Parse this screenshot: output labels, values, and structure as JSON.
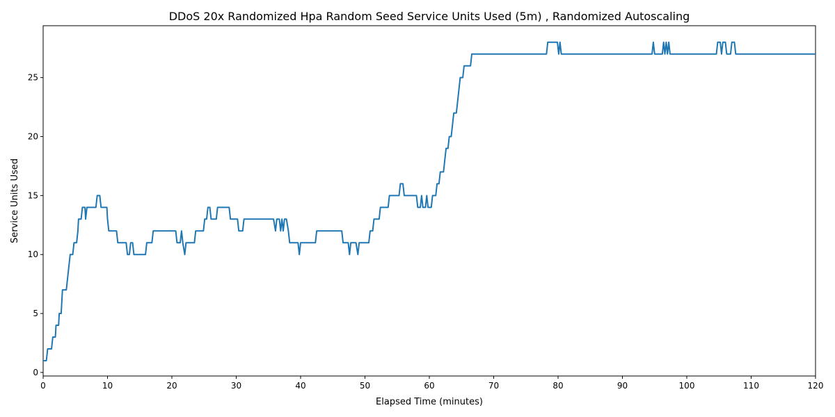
{
  "chart_data": {
    "type": "line",
    "title": "DDoS 20x Randomized Hpa Random Seed Service Units Used (5m) , Randomized Autoscaling",
    "xlabel": "Elapsed Time (minutes)",
    "ylabel": "Service Units Used",
    "xlim": [
      0,
      120
    ],
    "ylim": [
      -0.3,
      29.4
    ],
    "xticks": [
      0,
      10,
      20,
      30,
      40,
      50,
      60,
      70,
      80,
      90,
      100,
      110,
      120
    ],
    "yticks": [
      0,
      5,
      10,
      15,
      20,
      25
    ],
    "x": [
      0,
      0.5,
      0.7,
      1.3,
      1.5,
      1.9,
      2.0,
      2.4,
      2.5,
      2.8,
      3.0,
      3.6,
      3.8,
      4.0,
      4.2,
      4.6,
      4.8,
      5.2,
      5.4,
      5.5,
      5.9,
      6.1,
      6.5,
      6.6,
      6.8,
      8.2,
      8.4,
      8.8,
      9.0,
      9.9,
      10.0,
      10.2,
      11.4,
      11.6,
      12.9,
      13.1,
      13.4,
      13.6,
      13.9,
      14.1,
      15.9,
      16.1,
      16.9,
      17.1,
      20.6,
      20.8,
      21.3,
      21.5,
      21.7,
      22.0,
      22.2,
      23.5,
      23.7,
      24.9,
      25.1,
      25.4,
      25.6,
      25.9,
      26.1,
      26.9,
      27.1,
      28.9,
      29.1,
      30.2,
      30.4,
      31.0,
      31.2,
      35.8,
      36.1,
      36.3,
      36.7,
      36.9,
      37.1,
      37.3,
      37.5,
      37.8,
      38.1,
      38.3,
      39.6,
      39.8,
      40.0,
      42.3,
      42.5,
      46.4,
      46.6,
      47.4,
      47.6,
      47.8,
      48.6,
      48.9,
      49.1,
      50.6,
      50.8,
      51.2,
      51.4,
      52.2,
      52.4,
      53.6,
      53.8,
      55.3,
      55.5,
      55.9,
      56.1,
      58.0,
      58.2,
      58.6,
      58.8,
      59.0,
      59.4,
      59.6,
      59.8,
      60.3,
      60.5,
      61.0,
      61.2,
      61.5,
      61.7,
      62.2,
      62.4,
      62.6,
      62.9,
      63.1,
      63.4,
      63.6,
      63.8,
      64.2,
      64.4,
      64.6,
      64.8,
      65.2,
      65.4,
      66.4,
      66.6,
      78.2,
      78.4,
      79.9,
      80.1,
      80.3,
      80.5,
      94.6,
      94.8,
      95.0,
      96.2,
      96.4,
      96.6,
      96.8,
      97.0,
      97.2,
      97.4,
      104.6,
      104.8,
      105.2,
      105.4,
      105.6,
      106.0,
      106.2,
      106.8,
      107.0,
      107.4,
      107.6,
      120
    ],
    "series": [
      {
        "name": "Service Units Used",
        "color": "#1f77b4",
        "values": [
          1,
          1,
          2,
          2,
          3,
          3,
          4,
          4,
          5,
          5,
          7,
          7,
          8,
          9,
          10,
          10,
          11,
          11,
          12,
          13,
          13,
          14,
          14,
          13,
          14,
          14,
          15,
          15,
          14,
          14,
          13,
          12,
          12,
          11,
          11,
          10,
          10,
          11,
          11,
          10,
          10,
          11,
          11,
          12,
          12,
          11,
          11,
          12,
          11,
          10,
          11,
          11,
          12,
          12,
          13,
          13,
          14,
          14,
          13,
          13,
          14,
          14,
          13,
          13,
          12,
          12,
          13,
          13,
          12,
          13,
          13,
          12,
          13,
          12,
          13,
          13,
          12,
          11,
          11,
          10,
          11,
          11,
          12,
          12,
          11,
          11,
          10,
          11,
          11,
          10,
          11,
          11,
          12,
          12,
          13,
          13,
          14,
          14,
          15,
          15,
          16,
          16,
          15,
          15,
          14,
          14,
          15,
          14,
          14,
          15,
          14,
          14,
          15,
          15,
          16,
          16,
          17,
          17,
          18,
          19,
          19,
          20,
          20,
          21,
          22,
          22,
          23,
          24,
          25,
          25,
          26,
          26,
          27,
          27,
          28,
          28,
          27,
          28,
          27,
          27,
          28,
          27,
          27,
          28,
          27,
          28,
          27,
          28,
          27,
          27,
          28,
          28,
          27,
          28,
          28,
          27,
          27,
          28,
          28,
          27,
          27
        ]
      }
    ]
  }
}
